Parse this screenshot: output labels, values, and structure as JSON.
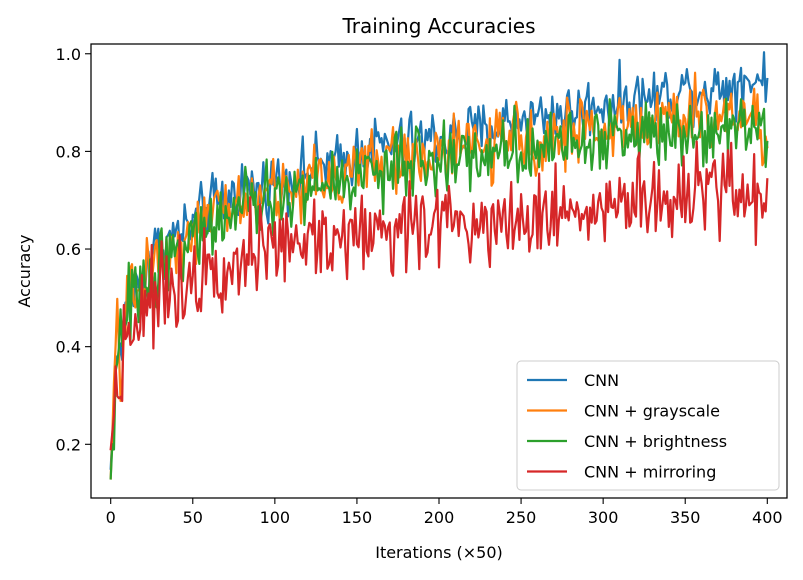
{
  "chart_data": {
    "type": "line",
    "title": "Training Accuracies",
    "xlabel": "Iterations (×50)",
    "ylabel": "Accuracy",
    "xlim": [
      -12,
      412
    ],
    "ylim": [
      0.09,
      1.02
    ],
    "xticks": [
      0,
      50,
      100,
      150,
      200,
      250,
      300,
      350,
      400
    ],
    "yticks": [
      0.2,
      0.4,
      0.6,
      0.8,
      1.0
    ],
    "ytick_labels": [
      "0.2",
      "0.4",
      "0.6",
      "0.8",
      "1.0"
    ],
    "grid": false,
    "legend_position": "lower-right",
    "series": [
      {
        "name": "CNN",
        "color": "#1f77b4",
        "x": [
          0,
          2,
          4,
          6,
          8,
          10,
          15,
          20,
          25,
          30,
          40,
          50,
          60,
          70,
          80,
          90,
          100,
          110,
          120,
          130,
          140,
          150,
          160,
          170,
          180,
          190,
          200,
          210,
          220,
          230,
          240,
          250,
          260,
          270,
          280,
          290,
          300,
          310,
          320,
          330,
          340,
          350,
          360,
          370,
          380,
          390,
          400
        ],
        "y": [
          0.15,
          0.3,
          0.39,
          0.36,
          0.42,
          0.5,
          0.52,
          0.55,
          0.6,
          0.6,
          0.63,
          0.65,
          0.69,
          0.7,
          0.73,
          0.72,
          0.74,
          0.75,
          0.76,
          0.78,
          0.77,
          0.8,
          0.81,
          0.81,
          0.82,
          0.82,
          0.83,
          0.83,
          0.84,
          0.84,
          0.86,
          0.87,
          0.87,
          0.88,
          0.88,
          0.89,
          0.9,
          0.9,
          0.91,
          0.91,
          0.92,
          0.93,
          0.93,
          0.93,
          0.94,
          0.95,
          0.95
        ],
        "amp": 0.03
      },
      {
        "name": "CNN + grayscale",
        "color": "#ff7f0e",
        "x": [
          0,
          2,
          4,
          6,
          8,
          10,
          15,
          20,
          25,
          30,
          40,
          50,
          60,
          70,
          80,
          90,
          100,
          110,
          120,
          130,
          140,
          150,
          160,
          170,
          180,
          190,
          200,
          210,
          220,
          230,
          240,
          250,
          260,
          270,
          280,
          290,
          300,
          310,
          320,
          330,
          340,
          350,
          360,
          370,
          380,
          390,
          400
        ],
        "y": [
          0.13,
          0.32,
          0.4,
          0.36,
          0.44,
          0.49,
          0.5,
          0.54,
          0.59,
          0.58,
          0.61,
          0.63,
          0.66,
          0.68,
          0.7,
          0.7,
          0.72,
          0.72,
          0.74,
          0.75,
          0.75,
          0.77,
          0.78,
          0.78,
          0.79,
          0.79,
          0.8,
          0.8,
          0.81,
          0.81,
          0.82,
          0.82,
          0.83,
          0.83,
          0.84,
          0.84,
          0.85,
          0.85,
          0.86,
          0.86,
          0.86,
          0.87,
          0.87,
          0.87,
          0.88,
          0.88,
          0.83
        ],
        "amp": 0.035
      },
      {
        "name": "CNN + brightness",
        "color": "#2ca02c",
        "x": [
          0,
          2,
          4,
          6,
          8,
          10,
          15,
          20,
          25,
          30,
          40,
          50,
          60,
          70,
          80,
          90,
          100,
          110,
          120,
          130,
          140,
          150,
          160,
          170,
          180,
          190,
          200,
          210,
          220,
          230,
          240,
          250,
          260,
          270,
          280,
          290,
          300,
          310,
          320,
          330,
          340,
          350,
          360,
          370,
          380,
          390,
          400
        ],
        "y": [
          0.13,
          0.28,
          0.33,
          0.4,
          0.45,
          0.48,
          0.5,
          0.52,
          0.56,
          0.57,
          0.6,
          0.62,
          0.65,
          0.66,
          0.68,
          0.69,
          0.7,
          0.71,
          0.72,
          0.73,
          0.74,
          0.75,
          0.76,
          0.76,
          0.77,
          0.78,
          0.78,
          0.79,
          0.79,
          0.8,
          0.8,
          0.81,
          0.81,
          0.82,
          0.82,
          0.82,
          0.83,
          0.83,
          0.84,
          0.84,
          0.84,
          0.85,
          0.85,
          0.85,
          0.86,
          0.86,
          0.86
        ],
        "amp": 0.035
      },
      {
        "name": "CNN + mirroring",
        "color": "#d62728",
        "x": [
          0,
          2,
          4,
          6,
          8,
          10,
          15,
          20,
          25,
          30,
          40,
          50,
          60,
          70,
          80,
          90,
          100,
          110,
          120,
          130,
          140,
          150,
          160,
          170,
          180,
          190,
          200,
          210,
          220,
          230,
          240,
          250,
          260,
          270,
          280,
          290,
          300,
          310,
          320,
          330,
          340,
          350,
          360,
          370,
          380,
          390,
          400
        ],
        "y": [
          0.19,
          0.27,
          0.33,
          0.36,
          0.4,
          0.44,
          0.46,
          0.49,
          0.5,
          0.5,
          0.53,
          0.55,
          0.57,
          0.58,
          0.59,
          0.59,
          0.6,
          0.61,
          0.62,
          0.62,
          0.63,
          0.63,
          0.64,
          0.64,
          0.65,
          0.65,
          0.65,
          0.66,
          0.66,
          0.66,
          0.67,
          0.67,
          0.67,
          0.68,
          0.68,
          0.68,
          0.69,
          0.69,
          0.69,
          0.7,
          0.7,
          0.7,
          0.71,
          0.71,
          0.72,
          0.71,
          0.73
        ],
        "amp": 0.045
      }
    ]
  }
}
